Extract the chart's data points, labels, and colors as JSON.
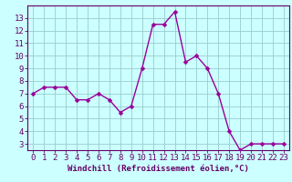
{
  "x": [
    0,
    1,
    2,
    3,
    4,
    5,
    6,
    7,
    8,
    9,
    10,
    11,
    12,
    13,
    14,
    15,
    16,
    17,
    18,
    19,
    20,
    21,
    22,
    23
  ],
  "y": [
    7.0,
    7.5,
    7.5,
    7.5,
    6.5,
    6.5,
    7.0,
    6.5,
    5.5,
    6.0,
    9.0,
    12.5,
    12.5,
    13.5,
    9.5,
    10.0,
    9.0,
    7.0,
    4.0,
    2.5,
    3.0,
    3.0,
    3.0,
    3.0
  ],
  "line_color": "#990099",
  "marker_color": "#990099",
  "bg_color": "#ccffff",
  "grid_color": "#99cccc",
  "xlabel": "Windchill (Refroidissement éolien,°C)",
  "xlim": [
    -0.5,
    23.5
  ],
  "ylim": [
    2.5,
    14.0
  ],
  "yticks": [
    3,
    4,
    5,
    6,
    7,
    8,
    9,
    10,
    11,
    12,
    13
  ],
  "xticks": [
    0,
    1,
    2,
    3,
    4,
    5,
    6,
    7,
    8,
    9,
    10,
    11,
    12,
    13,
    14,
    15,
    16,
    17,
    18,
    19,
    20,
    21,
    22,
    23
  ],
  "axis_color": "#660066",
  "tick_color": "#660066",
  "label_color": "#660066",
  "xlabel_fontsize": 6.5,
  "tick_fontsize": 6.5,
  "marker_size": 2.5,
  "line_width": 1.0
}
